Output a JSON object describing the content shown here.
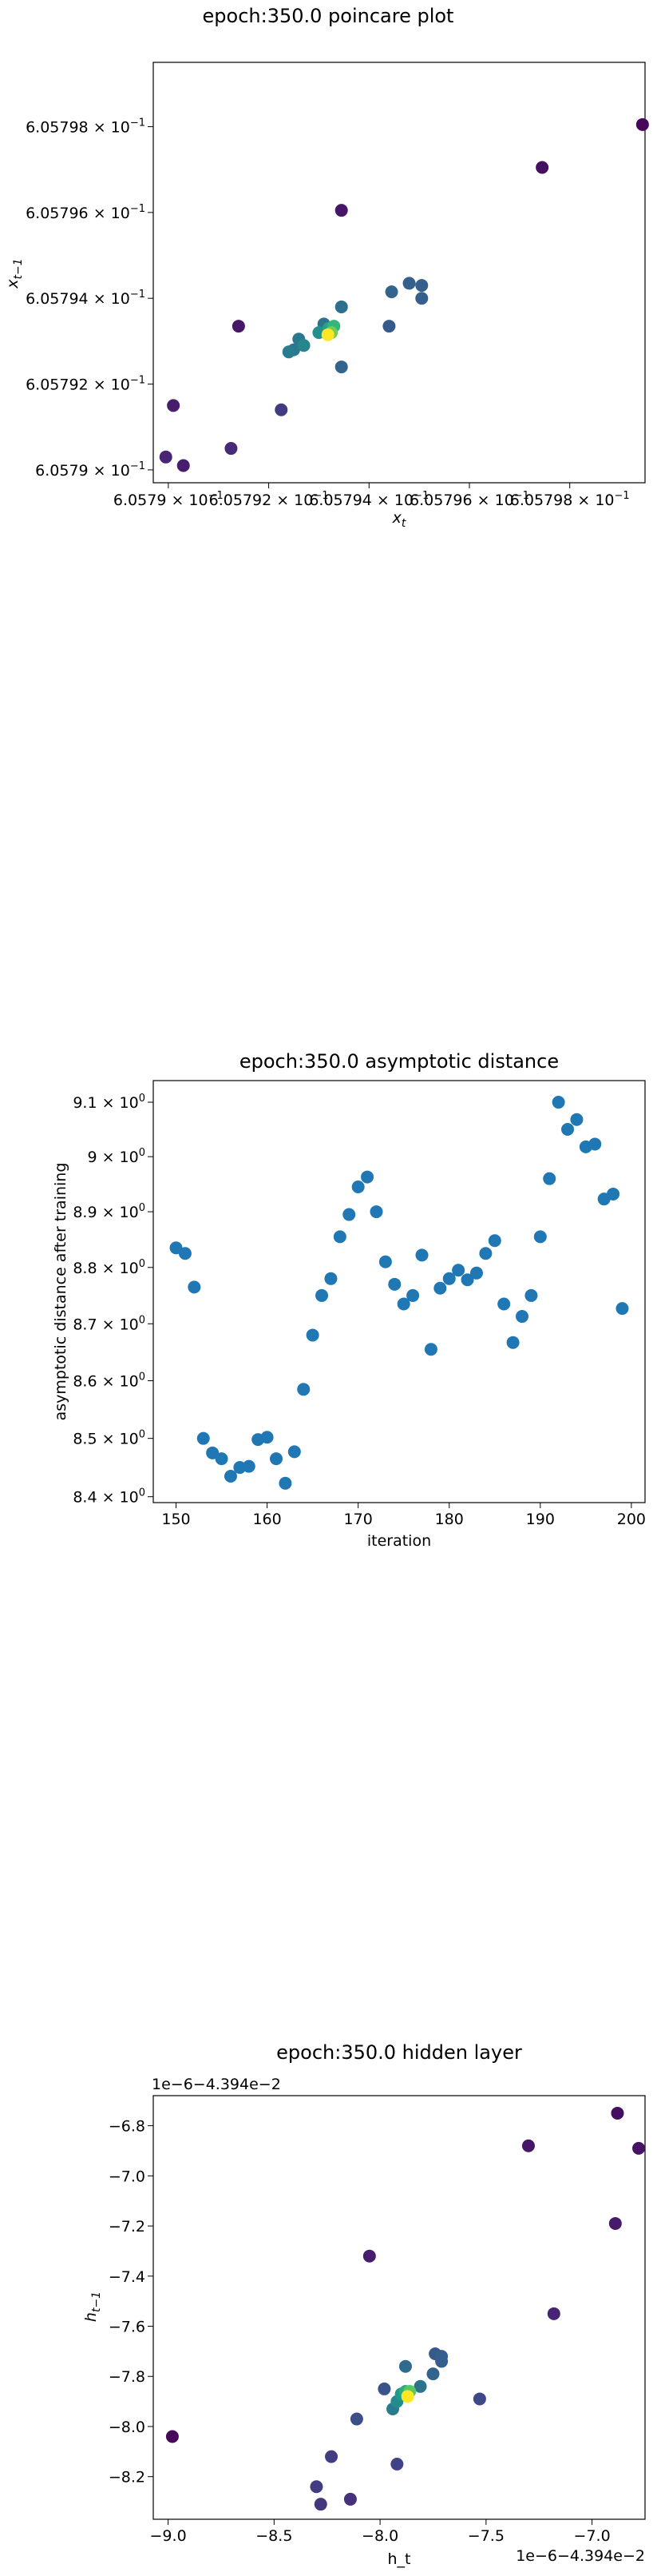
{
  "chart_data": [
    {
      "type": "scatter",
      "title": "epoch:350.0 poincare plot",
      "xlabel": "x_t",
      "ylabel": "x_{t−1}",
      "xlim": [
        0.6057897,
        0.6057995
      ],
      "ylim": [
        0.6057897,
        0.6057995
      ],
      "x_tick_labels": [
        "6.0579 × 10^−1",
        "6.05792 × 10^−1",
        "6.05794 × 10^−1",
        "6.05796 × 10^−1",
        "6.05798 × 10^−1"
      ],
      "y_tick_labels": [
        "6.0579 × 10^−1",
        "6.05792 × 10^−1",
        "6.05794 × 10^−1",
        "6.05796 × 10^−1",
        "6.05798 × 10^−1"
      ],
      "colormap": "viridis",
      "points": [
        {
          "x": 0.60579945,
          "y": 0.60579805,
          "c": 0.02
        },
        {
          "x": 0.60579745,
          "y": 0.60579705,
          "c": 0.04
        },
        {
          "x": 0.60579345,
          "y": 0.60579605,
          "c": 0.06
        },
        {
          "x": 0.6057914,
          "y": 0.60579335,
          "c": 0.06
        },
        {
          "x": 0.6057901,
          "y": 0.6057915,
          "c": 0.08
        },
        {
          "x": 0.6057903,
          "y": 0.6057901,
          "c": 0.08
        },
        {
          "x": 0.60578995,
          "y": 0.6057903,
          "c": 0.1
        },
        {
          "x": 0.60579125,
          "y": 0.6057905,
          "c": 0.12
        },
        {
          "x": 0.60579225,
          "y": 0.6057914,
          "c": 0.18
        },
        {
          "x": 0.6057944,
          "y": 0.60579335,
          "c": 0.28
        },
        {
          "x": 0.6057948,
          "y": 0.60579435,
          "c": 0.3
        },
        {
          "x": 0.60579505,
          "y": 0.6057943,
          "c": 0.3
        },
        {
          "x": 0.60579505,
          "y": 0.605794,
          "c": 0.3
        },
        {
          "x": 0.60579445,
          "y": 0.60579415,
          "c": 0.32
        },
        {
          "x": 0.60579345,
          "y": 0.6057924,
          "c": 0.32
        },
        {
          "x": 0.60579345,
          "y": 0.6057938,
          "c": 0.36
        },
        {
          "x": 0.6057931,
          "y": 0.6057934,
          "c": 0.38
        },
        {
          "x": 0.6057926,
          "y": 0.60579305,
          "c": 0.4
        },
        {
          "x": 0.6057925,
          "y": 0.6057928,
          "c": 0.4
        },
        {
          "x": 0.6057924,
          "y": 0.60579275,
          "c": 0.42
        },
        {
          "x": 0.6057927,
          "y": 0.6057929,
          "c": 0.46
        },
        {
          "x": 0.605793,
          "y": 0.6057932,
          "c": 0.5
        },
        {
          "x": 0.6057932,
          "y": 0.6057933,
          "c": 0.58
        },
        {
          "x": 0.6057933,
          "y": 0.60579335,
          "c": 0.66
        },
        {
          "x": 0.60579325,
          "y": 0.6057932,
          "c": 0.78
        },
        {
          "x": 0.60579318,
          "y": 0.60579315,
          "c": 1.0
        }
      ]
    },
    {
      "type": "scatter",
      "title": "epoch:350.0 asymptotic distance",
      "xlabel": "iteration",
      "ylabel": "asymptotic distance after training",
      "xlim": [
        147.5,
        201.5
      ],
      "ylim": [
        8.39,
        9.14
      ],
      "y_scale": "log",
      "x_ticks": [
        150,
        160,
        170,
        180,
        190,
        200
      ],
      "y_ticks": [
        8.4,
        8.5,
        8.6,
        8.7,
        8.8,
        8.9,
        9.0,
        9.1
      ],
      "y_tick_labels": [
        "8.4 × 10^0",
        "8.5 × 10^0",
        "8.6 × 10^0",
        "8.7 × 10^0",
        "8.8 × 10^0",
        "8.9 × 10^0",
        "9 × 10^0",
        "9.1 × 10^0"
      ],
      "color": "#1f77b4",
      "x": [
        150,
        151,
        152,
        153,
        154,
        155,
        156,
        157,
        158,
        159,
        160,
        161,
        162,
        163,
        164,
        165,
        166,
        167,
        168,
        169,
        170,
        171,
        172,
        173,
        174,
        175,
        176,
        177,
        178,
        179,
        180,
        181,
        182,
        183,
        184,
        185,
        186,
        187,
        188,
        189,
        190,
        191,
        192,
        193,
        194,
        195,
        196,
        197,
        198,
        199
      ],
      "y": [
        8.835,
        8.825,
        8.765,
        8.5,
        8.475,
        8.465,
        8.435,
        8.45,
        8.452,
        8.498,
        8.502,
        8.465,
        8.423,
        8.477,
        8.585,
        8.68,
        8.75,
        8.78,
        8.855,
        8.895,
        8.945,
        8.963,
        8.9,
        8.81,
        8.77,
        8.735,
        8.75,
        8.822,
        8.655,
        8.763,
        8.78,
        8.795,
        8.778,
        8.79,
        8.825,
        8.848,
        8.735,
        8.667,
        8.713,
        8.75,
        8.855,
        8.96,
        9.1,
        9.05,
        9.068,
        9.018,
        9.023,
        8.923,
        8.932,
        8.727
      ]
    },
    {
      "type": "scatter",
      "title": "epoch:350.0 hidden layer",
      "xlabel": "h_t",
      "ylabel": "h_{t−1}",
      "offset_label_x": "1e−6−4.394e−2",
      "offset_label_y": "1e−6−4.394e−2",
      "xlim": [
        -9.07,
        -6.75
      ],
      "ylim": [
        -8.37,
        -6.68
      ],
      "x_ticks": [
        -9.0,
        -8.5,
        -8.0,
        -7.5,
        -7.0
      ],
      "y_ticks": [
        -8.2,
        -8.0,
        -7.8,
        -7.6,
        -7.4,
        -7.2,
        -7.0,
        -6.8
      ],
      "x_tick_labels": [
        "−9.0",
        "−8.5",
        "−8.0",
        "−7.5",
        "−7.0"
      ],
      "y_tick_labels": [
        "−8.2",
        "−8.0",
        "−7.8",
        "−7.6",
        "−7.4",
        "−7.2",
        "−7.0",
        "−6.8"
      ],
      "colormap": "viridis",
      "points": [
        {
          "x": -8.98,
          "y": -8.04,
          "c": 0.02
        },
        {
          "x": -6.88,
          "y": -6.75,
          "c": 0.04
        },
        {
          "x": -6.78,
          "y": -6.89,
          "c": 0.05
        },
        {
          "x": -7.3,
          "y": -6.88,
          "c": 0.06
        },
        {
          "x": -6.89,
          "y": -7.19,
          "c": 0.07
        },
        {
          "x": -8.05,
          "y": -7.32,
          "c": 0.08
        },
        {
          "x": -7.18,
          "y": -7.55,
          "c": 0.1
        },
        {
          "x": -8.14,
          "y": -8.29,
          "c": 0.14
        },
        {
          "x": -8.28,
          "y": -8.31,
          "c": 0.16
        },
        {
          "x": -8.3,
          "y": -8.24,
          "c": 0.18
        },
        {
          "x": -8.23,
          "y": -8.12,
          "c": 0.18
        },
        {
          "x": -7.92,
          "y": -8.15,
          "c": 0.2
        },
        {
          "x": -7.53,
          "y": -7.89,
          "c": 0.22
        },
        {
          "x": -8.11,
          "y": -7.97,
          "c": 0.24
        },
        {
          "x": -7.98,
          "y": -7.85,
          "c": 0.26
        },
        {
          "x": -7.74,
          "y": -7.71,
          "c": 0.28
        },
        {
          "x": -7.71,
          "y": -7.72,
          "c": 0.3
        },
        {
          "x": -7.71,
          "y": -7.74,
          "c": 0.3
        },
        {
          "x": -7.75,
          "y": -7.79,
          "c": 0.32
        },
        {
          "x": -7.88,
          "y": -7.76,
          "c": 0.34
        },
        {
          "x": -7.81,
          "y": -7.84,
          "c": 0.38
        },
        {
          "x": -7.94,
          "y": -7.93,
          "c": 0.42
        },
        {
          "x": -7.92,
          "y": -7.9,
          "c": 0.48
        },
        {
          "x": -7.9,
          "y": -7.87,
          "c": 0.54
        },
        {
          "x": -7.88,
          "y": -7.86,
          "c": 0.62
        },
        {
          "x": -7.86,
          "y": -7.86,
          "c": 0.74
        },
        {
          "x": -7.87,
          "y": -7.88,
          "c": 1.0
        }
      ]
    }
  ]
}
